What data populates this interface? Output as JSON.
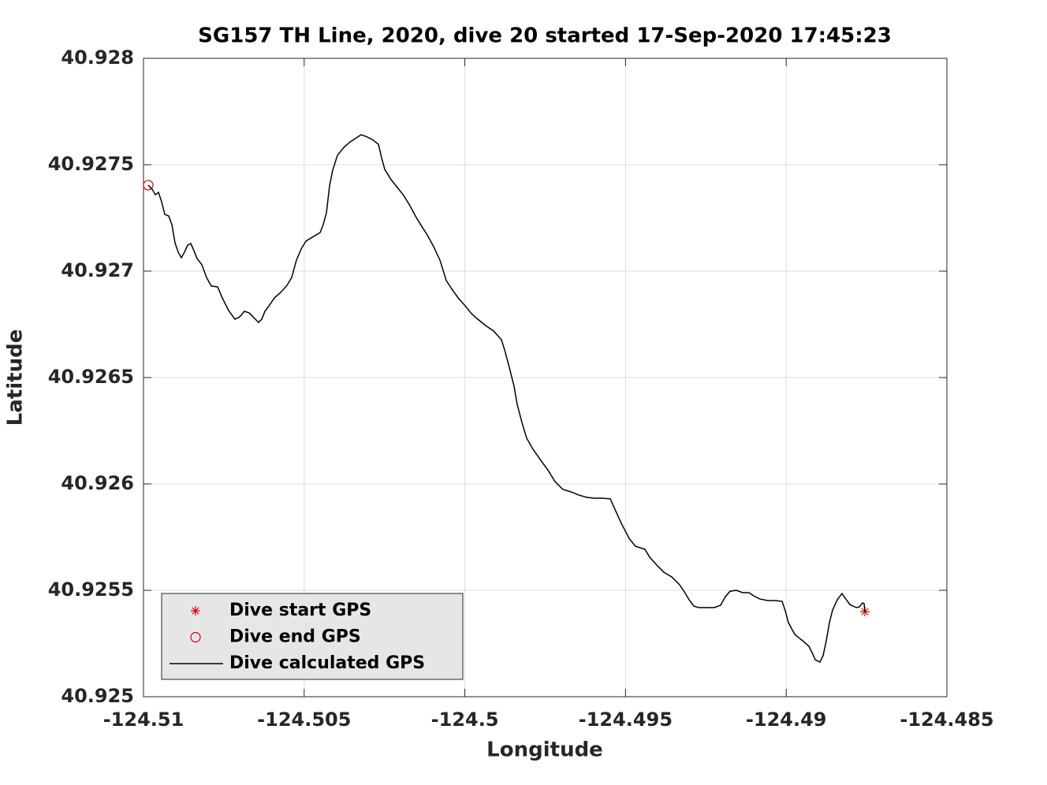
{
  "chart_data": {
    "type": "line",
    "title": "SG157 TH Line, 2020, dive 20 started 17-Sep-2020 17:45:23",
    "xlabel": "Longitude",
    "ylabel": "Latitude",
    "xlim": [
      -124.51,
      -124.485
    ],
    "ylim": [
      40.925,
      40.928
    ],
    "xticks": [
      -124.51,
      -124.505,
      -124.5,
      -124.495,
      -124.49,
      -124.485
    ],
    "yticks": [
      40.925,
      40.9255,
      40.926,
      40.9265,
      40.927,
      40.9275,
      40.928
    ],
    "grid": true,
    "legend": "lower left",
    "series": [
      {
        "name": "Dive start GPS",
        "type": "scatter",
        "marker": "star",
        "color": "#d40000",
        "x": [
          -124.487551
        ],
        "values": [
          40.9254
        ]
      },
      {
        "name": "Dive end GPS",
        "type": "scatter",
        "marker": "circle",
        "color": "#d40000",
        "x": [
          -124.509853
        ],
        "values": [
          40.927404
        ]
      },
      {
        "name": "Dive calculated GPS",
        "type": "line",
        "color": "#000000",
        "x": [
          -124.509853,
          -124.50973,
          -124.509632,
          -124.509534,
          -124.509436,
          -124.509338,
          -124.509215,
          -124.509117,
          -124.509019,
          -124.50892,
          -124.508822,
          -124.508724,
          -124.508626,
          -124.508528,
          -124.50843,
          -124.508332,
          -124.508184,
          -124.508037,
          -124.50789,
          -124.507694,
          -124.507547,
          -124.50735,
          -124.507154,
          -124.507007,
          -124.50686,
          -124.506712,
          -124.506565,
          -124.506418,
          -124.50632,
          -124.506222,
          -124.506075,
          -124.505927,
          -124.505731,
          -124.505535,
          -124.505388,
          -124.50524,
          -124.505093,
          -124.504946,
          -124.50475,
          -124.504504,
          -124.504406,
          -124.504308,
          -124.50421,
          -124.504112,
          -124.503965,
          -124.503768,
          -124.503572,
          -124.503376,
          -124.503229,
          -124.503081,
          -124.502885,
          -124.502689,
          -124.502591,
          -124.502493,
          -124.502296,
          -124.5021,
          -124.501904,
          -124.501707,
          -124.501511,
          -124.501315,
          -124.501168,
          -124.500971,
          -124.500775,
          -124.500579,
          -124.500383,
          -124.500186,
          -124.49999,
          -124.499794,
          -124.499598,
          -124.499352,
          -124.499107,
          -124.498862,
          -124.498763,
          -124.498616,
          -124.498469,
          -124.498371,
          -124.498224,
          -124.498076,
          -124.49788,
          -124.497635,
          -124.497389,
          -124.497193,
          -124.496948,
          -124.496703,
          -124.496457,
          -124.496212,
          -124.495967,
          -124.495721,
          -124.495476,
          -124.495329,
          -124.495132,
          -124.494887,
          -124.494691,
          -124.494396,
          -124.494249,
          -124.494004,
          -124.493808,
          -124.493562,
          -124.493317,
          -124.49317,
          -124.493022,
          -124.492875,
          -124.492728,
          -124.492483,
          -124.492237,
          -124.492041,
          -124.491894,
          -124.491747,
          -124.49155,
          -124.491354,
          -124.491158,
          -124.491011,
          -124.490814,
          -124.490569,
          -124.490324,
          -124.490127,
          -124.490029,
          -124.489931,
          -124.489735,
          -124.489489,
          -124.489293,
          -124.489195,
          -124.489097,
          -124.48895,
          -124.488852,
          -124.488753,
          -124.488655,
          -124.488557,
          -124.48841,
          -124.488263,
          -124.488165,
          -124.488017,
          -124.487821,
          -124.487723,
          -124.487625,
          -124.487575,
          -124.487551
        ],
        "values": [
          40.927404,
          40.927385,
          40.927359,
          40.92737,
          40.927326,
          40.927267,
          40.927259,
          40.927219,
          40.927133,
          40.927089,
          40.927063,
          40.927089,
          40.927122,
          40.92713,
          40.927096,
          40.927059,
          40.92703,
          40.92697,
          40.92693,
          40.926926,
          40.926874,
          40.926815,
          40.926774,
          40.926785,
          40.926811,
          40.926804,
          40.926781,
          40.926759,
          40.926774,
          40.926811,
          40.926841,
          40.926874,
          40.9269,
          40.926933,
          40.92697,
          40.927052,
          40.927104,
          40.927141,
          40.927159,
          40.927181,
          40.927219,
          40.927274,
          40.9274,
          40.927474,
          40.927544,
          40.927581,
          40.927607,
          40.927626,
          40.927641,
          40.927633,
          40.927619,
          40.927596,
          40.927533,
          40.927478,
          40.92743,
          40.927393,
          40.927356,
          40.927307,
          40.927252,
          40.927204,
          40.92717,
          40.927115,
          40.927052,
          40.926956,
          40.926911,
          40.92687,
          40.926837,
          40.9268,
          40.926774,
          40.926744,
          40.926719,
          40.926678,
          40.92663,
          40.926548,
          40.926459,
          40.926374,
          40.926289,
          40.926215,
          40.926163,
          40.926111,
          40.926059,
          40.926011,
          40.925974,
          40.925963,
          40.925948,
          40.925937,
          40.925933,
          40.925933,
          40.92593,
          40.925881,
          40.925815,
          40.925744,
          40.925707,
          40.925693,
          40.925656,
          40.925615,
          40.925585,
          40.925563,
          40.925526,
          40.925493,
          40.925456,
          40.925426,
          40.925419,
          40.925419,
          40.925419,
          40.92543,
          40.92547,
          40.925496,
          40.9255,
          40.925489,
          40.925489,
          40.925474,
          40.925459,
          40.925452,
          40.925452,
          40.925448,
          40.925404,
          40.925348,
          40.925293,
          40.925263,
          40.925237,
          40.925207,
          40.925174,
          40.925163,
          40.925193,
          40.925263,
          40.925348,
          40.925407,
          40.925456,
          40.925485,
          40.925463,
          40.925433,
          40.925419,
          40.925422,
          40.925441,
          40.925437,
          40.9254
        ]
      }
    ]
  }
}
